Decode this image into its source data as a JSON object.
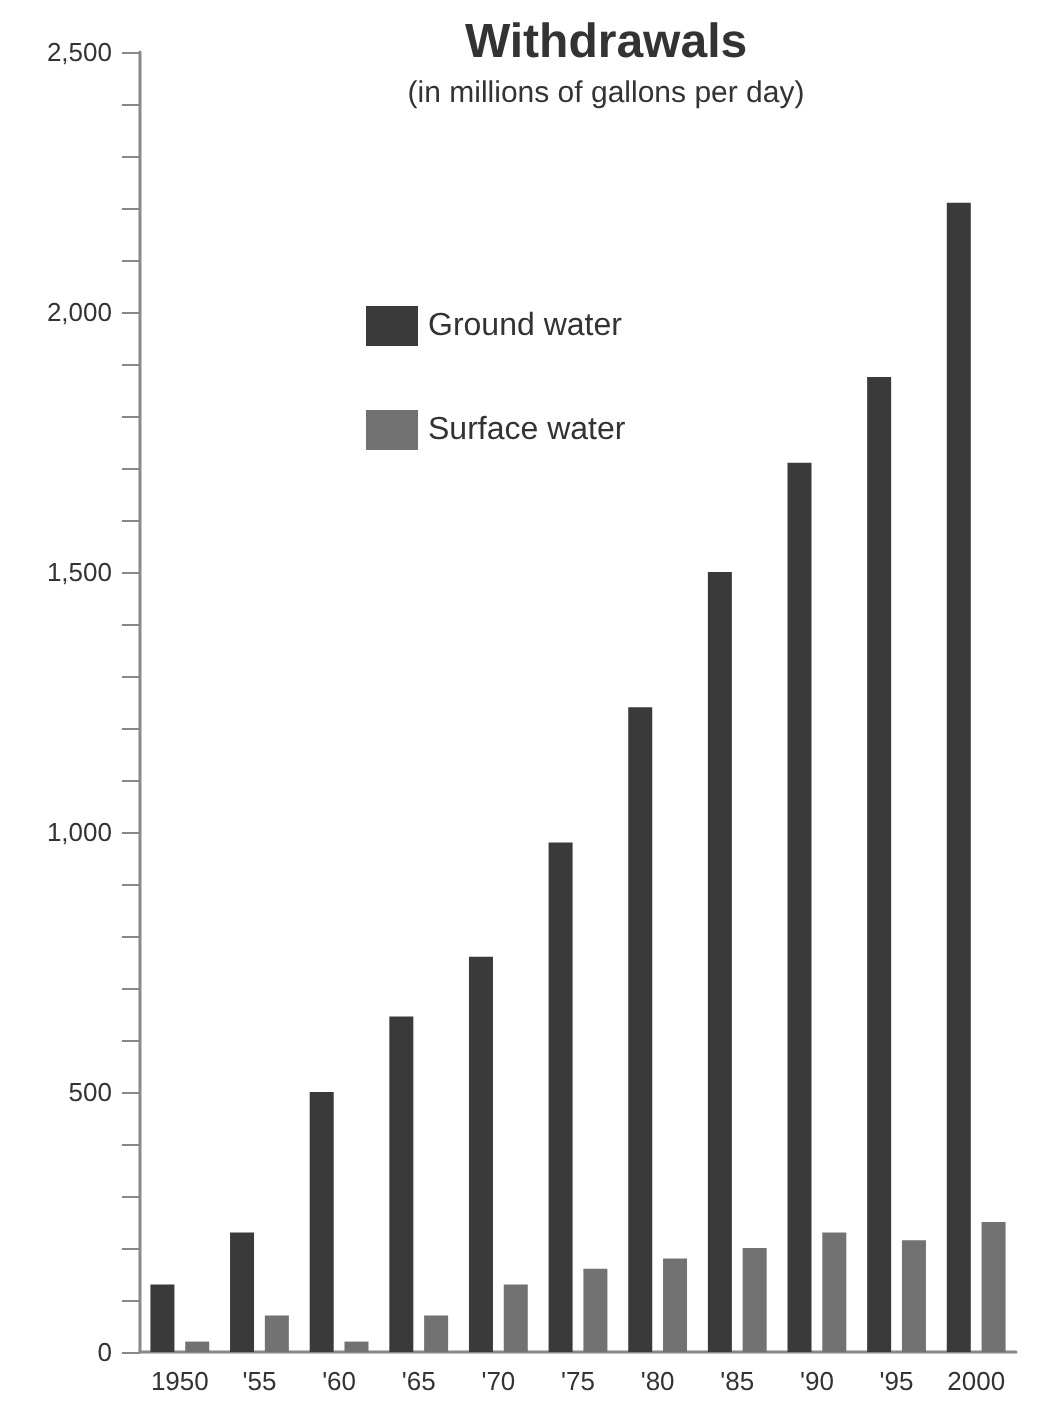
{
  "chart_data": {
    "type": "bar",
    "title": "Withdrawals",
    "subtitle": "(in millions of gallons per day)",
    "categories": [
      "1950",
      "'55",
      "'60",
      "'65",
      "'70",
      "'75",
      "'80",
      "'85",
      "'90",
      "'95",
      "2000"
    ],
    "series": [
      {
        "name": "Ground water",
        "color": "#3a3a3a",
        "values": [
          130,
          230,
          500,
          645,
          760,
          980,
          1240,
          1500,
          1710,
          1875,
          2210
        ]
      },
      {
        "name": "Surface water",
        "color": "#727272",
        "values": [
          20,
          70,
          20,
          70,
          130,
          160,
          180,
          200,
          230,
          215,
          250
        ]
      }
    ],
    "ylim": [
      0,
      2500
    ],
    "yticks": [
      0,
      {
        "value": 100,
        "label": null
      },
      {
        "value": 200,
        "label": null
      },
      {
        "value": 300,
        "label": null
      },
      {
        "value": 400,
        "label": null
      },
      {
        "value": 500,
        "label": "500"
      },
      {
        "value": 600,
        "label": null
      },
      {
        "value": 700,
        "label": null
      },
      {
        "value": 800,
        "label": null
      },
      {
        "value": 900,
        "label": null
      },
      {
        "value": 1000,
        "label": "1,000"
      },
      {
        "value": 1100,
        "label": null
      },
      {
        "value": 1200,
        "label": null
      },
      {
        "value": 1300,
        "label": null
      },
      {
        "value": 1400,
        "label": null
      },
      {
        "value": 1500,
        "label": "1,500"
      },
      {
        "value": 1600,
        "label": null
      },
      {
        "value": 1700,
        "label": null
      },
      {
        "value": 1800,
        "label": null
      },
      {
        "value": 1900,
        "label": null
      },
      {
        "value": 2000,
        "label": "2,000"
      },
      {
        "value": 2100,
        "label": null
      },
      {
        "value": 2200,
        "label": null
      },
      {
        "value": 2300,
        "label": null
      },
      {
        "value": 2400,
        "label": null
      },
      {
        "value": 2500,
        "label": "2,500"
      }
    ],
    "grid": false,
    "legend": "top left"
  }
}
